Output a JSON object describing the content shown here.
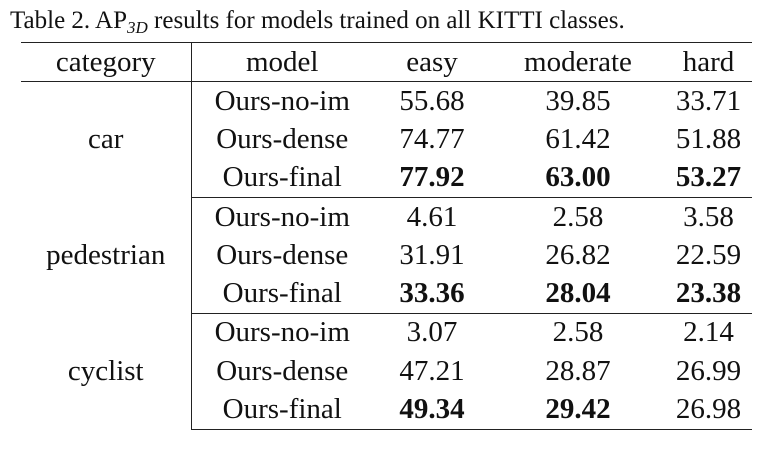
{
  "caption": {
    "prefix": "Table 2. AP",
    "subscript": "3D",
    "suffix": " results for models trained on all KITTI classes."
  },
  "headers": [
    "category",
    "model",
    "easy",
    "moderate",
    "hard"
  ],
  "groups": [
    {
      "category": "car",
      "rows": [
        {
          "model": "Ours-no-im",
          "easy": "55.68",
          "moderate": "39.85",
          "hard": "33.71"
        },
        {
          "model": "Ours-dense",
          "easy": "74.77",
          "moderate": "61.42",
          "hard": "51.88"
        },
        {
          "model": "Ours-final",
          "easy": "77.92",
          "moderate": "63.00",
          "hard": "53.27"
        }
      ]
    },
    {
      "category": "pedestrian",
      "rows": [
        {
          "model": "Ours-no-im",
          "easy": "4.61",
          "moderate": "2.58",
          "hard": "3.58"
        },
        {
          "model": "Ours-dense",
          "easy": "31.91",
          "moderate": "26.82",
          "hard": "22.59"
        },
        {
          "model": "Ours-final",
          "easy": "33.36",
          "moderate": "28.04",
          "hard": "23.38"
        }
      ]
    },
    {
      "category": "cyclist",
      "rows": [
        {
          "model": "Ours-no-im",
          "easy": "3.07",
          "moderate": "2.58",
          "hard": "2.14"
        },
        {
          "model": "Ours-dense",
          "easy": "47.21",
          "moderate": "28.87",
          "hard": "26.99"
        },
        {
          "model": "Ours-final",
          "easy": "49.34",
          "moderate": "29.42",
          "hard": "26.98"
        }
      ]
    }
  ],
  "bold_cells": {
    "0": {
      "2": [
        "easy",
        "moderate",
        "hard"
      ]
    },
    "1": {
      "2": [
        "easy",
        "moderate",
        "hard"
      ]
    },
    "2": {
      "2": [
        "easy",
        "moderate"
      ]
    }
  }
}
